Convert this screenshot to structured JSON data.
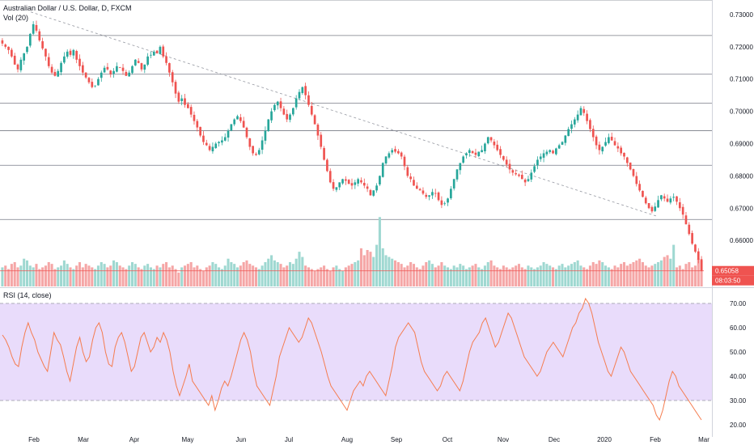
{
  "chart_data": {
    "type": "candlestick",
    "title": "Australian Dollar / U.S. Dollar, D, FXCM",
    "volume_label": "Vol (20)",
    "rsi_label": "RSI (14, close)",
    "price_range": [
      0.6455,
      0.7345
    ],
    "price_ticks": [
      "0.73000",
      "0.72000",
      "0.71000",
      "0.70000",
      "0.69000",
      "0.68000",
      "0.67000",
      "0.66000"
    ],
    "last_price": "0.65058",
    "countdown": "08:03:50",
    "horizontal_levels": [
      0.7345,
      0.7235,
      0.7115,
      0.7025,
      0.694,
      0.6833,
      0.6665
    ],
    "trendline": {
      "from": {
        "date": "Jan 23",
        "price": 0.7308
      },
      "to": {
        "date": "Feb 10",
        "price": 0.6675
      }
    },
    "x_labels": [
      "Feb",
      "Mar",
      "Apr",
      "May",
      "Jun",
      "Jul",
      "Aug",
      "Sep",
      "Oct",
      "Nov",
      "Dec",
      "2020",
      "Feb",
      "Mar"
    ],
    "close_series": [
      0.721,
      0.72,
      0.719,
      0.717,
      0.7145,
      0.713,
      0.716,
      0.718,
      0.72,
      0.724,
      0.727,
      0.725,
      0.722,
      0.7195,
      0.717,
      0.714,
      0.712,
      0.711,
      0.7125,
      0.715,
      0.717,
      0.7185,
      0.7175,
      0.719,
      0.716,
      0.714,
      0.712,
      0.7105,
      0.709,
      0.7075,
      0.708,
      0.71,
      0.712,
      0.7135,
      0.713,
      0.7115,
      0.7125,
      0.714,
      0.7135,
      0.7125,
      0.711,
      0.712,
      0.714,
      0.716,
      0.715,
      0.713,
      0.7145,
      0.717,
      0.7175,
      0.7185,
      0.718,
      0.72,
      0.717,
      0.715,
      0.712,
      0.709,
      0.7055,
      0.703,
      0.704,
      0.702,
      0.701,
      0.699,
      0.697,
      0.695,
      0.6925,
      0.6905,
      0.6895,
      0.688,
      0.689,
      0.69,
      0.6905,
      0.691,
      0.692,
      0.694,
      0.696,
      0.6975,
      0.6985,
      0.697,
      0.695,
      0.692,
      0.689,
      0.687,
      0.6865,
      0.688,
      0.691,
      0.694,
      0.6975,
      0.7,
      0.702,
      0.703,
      0.701,
      0.699,
      0.6975,
      0.699,
      0.701,
      0.704,
      0.706,
      0.7075,
      0.705,
      0.702,
      0.699,
      0.696,
      0.6925,
      0.689,
      0.685,
      0.6815,
      0.678,
      0.676,
      0.6765,
      0.678,
      0.679,
      0.6785,
      0.6775,
      0.677,
      0.678,
      0.679,
      0.678,
      0.677,
      0.676,
      0.674,
      0.6755,
      0.677,
      0.68,
      0.684,
      0.686,
      0.687,
      0.688,
      0.6875,
      0.687,
      0.686,
      0.683,
      0.68,
      0.679,
      0.677,
      0.676,
      0.6755,
      0.6745,
      0.6735,
      0.674,
      0.675,
      0.6745,
      0.6725,
      0.671,
      0.6715,
      0.673,
      0.676,
      0.679,
      0.682,
      0.684,
      0.686,
      0.687,
      0.688,
      0.687,
      0.6865,
      0.6875,
      0.688,
      0.69,
      0.692,
      0.691,
      0.6895,
      0.688,
      0.6865,
      0.685,
      0.6835,
      0.682,
      0.681,
      0.6805,
      0.68,
      0.679,
      0.678,
      0.679,
      0.681,
      0.683,
      0.685,
      0.686,
      0.687,
      0.6875,
      0.688,
      0.687,
      0.6885,
      0.6895,
      0.6905,
      0.6925,
      0.6945,
      0.696,
      0.6975,
      0.699,
      0.701,
      0.6995,
      0.697,
      0.6945,
      0.692,
      0.6895,
      0.688,
      0.689,
      0.6905,
      0.692,
      0.691,
      0.6895,
      0.6885,
      0.687,
      0.686,
      0.684,
      0.682,
      0.68,
      0.6775,
      0.6755,
      0.6735,
      0.6715,
      0.67,
      0.669,
      0.6705,
      0.6725,
      0.674,
      0.673,
      0.672,
      0.673,
      0.6735,
      0.672,
      0.67,
      0.668,
      0.665,
      0.662,
      0.659,
      0.6565,
      0.654,
      0.6506
    ],
    "rsi_range": [
      15,
      75
    ],
    "rsi_ticks": [
      "70.00",
      "60.00",
      "50.00",
      "40.00",
      "30.00",
      "20.00"
    ],
    "rsi_band": [
      30,
      70
    ],
    "rsi_series": [
      57,
      55,
      52,
      48,
      45,
      44,
      52,
      58,
      62,
      58,
      55,
      50,
      47,
      44,
      42,
      50,
      58,
      55,
      53,
      48,
      42,
      38,
      45,
      52,
      56,
      50,
      46,
      48,
      55,
      60,
      62,
      58,
      50,
      45,
      44,
      52,
      56,
      58,
      54,
      48,
      42,
      44,
      50,
      56,
      58,
      54,
      50,
      52,
      56,
      54,
      58,
      55,
      50,
      42,
      36,
      32,
      36,
      40,
      45,
      38,
      36,
      34,
      32,
      30,
      28,
      32,
      26,
      30,
      35,
      38,
      36,
      40,
      45,
      50,
      55,
      58,
      55,
      50,
      42,
      36,
      34,
      32,
      30,
      28,
      34,
      40,
      48,
      52,
      56,
      60,
      58,
      56,
      54,
      56,
      60,
      64,
      62,
      58,
      54,
      50,
      45,
      40,
      36,
      34,
      32,
      30,
      28,
      26,
      30,
      34,
      36,
      38,
      36,
      40,
      42,
      40,
      38,
      36,
      34,
      32,
      38,
      44,
      52,
      56,
      58,
      60,
      62,
      60,
      58,
      52,
      46,
      42,
      40,
      38,
      36,
      34,
      36,
      40,
      42,
      40,
      38,
      36,
      34,
      38,
      44,
      50,
      54,
      56,
      58,
      62,
      64,
      60,
      56,
      52,
      54,
      58,
      62,
      66,
      64,
      60,
      56,
      52,
      48,
      46,
      44,
      42,
      40,
      42,
      46,
      50,
      52,
      54,
      52,
      50,
      48,
      52,
      56,
      60,
      62,
      66,
      68,
      72,
      70,
      66,
      60,
      54,
      50,
      46,
      42,
      40,
      44,
      48,
      52,
      50,
      46,
      42,
      40,
      38,
      36,
      34,
      32,
      30,
      28,
      24,
      22,
      26,
      32,
      38,
      42,
      40,
      36,
      34,
      32,
      30,
      28,
      26,
      24,
      22
    ],
    "volume_relative": [
      0.55,
      0.6,
      0.5,
      0.65,
      0.7,
      0.55,
      0.6,
      0.8,
      0.75,
      0.6,
      0.55,
      0.65,
      0.5,
      0.55,
      0.6,
      0.7,
      0.65,
      0.5,
      0.55,
      0.6,
      0.75,
      0.65,
      0.55,
      0.5,
      0.6,
      0.7,
      0.55,
      0.65,
      0.6,
      0.55,
      0.5,
      0.6,
      0.7,
      0.65,
      0.55,
      0.6,
      0.75,
      0.7,
      0.6,
      0.55,
      0.5,
      0.6,
      0.7,
      0.65,
      0.55,
      0.5,
      0.6,
      0.65,
      0.55,
      0.5,
      0.6,
      0.55,
      0.65,
      0.7,
      0.55,
      0.6,
      0.5,
      0.4,
      0.55,
      0.6,
      0.65,
      0.7,
      0.55,
      0.6,
      0.5,
      0.45,
      0.55,
      0.6,
      0.7,
      0.65,
      0.55,
      0.5,
      0.6,
      0.8,
      0.7,
      0.65,
      0.55,
      0.6,
      0.7,
      0.75,
      0.65,
      0.6,
      0.55,
      0.5,
      0.6,
      0.7,
      0.8,
      0.9,
      0.75,
      0.7,
      0.65,
      0.55,
      0.6,
      0.7,
      0.65,
      0.8,
      1.0,
      0.85,
      0.6,
      0.55,
      0.5,
      0.45,
      0.5,
      0.55,
      0.6,
      0.5,
      0.45,
      0.55,
      0.6,
      0.5,
      0.45,
      0.55,
      0.6,
      0.65,
      0.7,
      0.75,
      1.1,
      0.9,
      1.05,
      1.0,
      0.85,
      1.2,
      2.0,
      1.1,
      0.9,
      0.85,
      0.8,
      0.75,
      0.7,
      0.65,
      0.55,
      0.6,
      0.7,
      0.65,
      0.55,
      0.5,
      0.6,
      0.7,
      0.75,
      0.65,
      0.55,
      0.6,
      0.7,
      0.6,
      0.55,
      0.5,
      0.6,
      0.55,
      0.65,
      0.6,
      0.5,
      0.55,
      0.6,
      0.65,
      0.55,
      0.5,
      0.6,
      0.7,
      0.75,
      0.6,
      0.55,
      0.5,
      0.6,
      0.55,
      0.5,
      0.55,
      0.6,
      0.65,
      0.55,
      0.5,
      0.6,
      0.55,
      0.5,
      0.55,
      0.6,
      0.7,
      0.65,
      0.6,
      0.55,
      0.5,
      0.6,
      0.65,
      0.55,
      0.6,
      0.65,
      0.7,
      0.75,
      0.6,
      0.55,
      0.5,
      0.6,
      0.7,
      0.65,
      0.75,
      0.7,
      0.6,
      0.55,
      0.5,
      0.6,
      0.55,
      0.65,
      0.7,
      0.6,
      0.65,
      0.7,
      0.75,
      0.8,
      0.7,
      0.6,
      0.55,
      0.6,
      0.65,
      0.7,
      0.75,
      0.85,
      0.9,
      0.8,
      1.2
    ]
  }
}
